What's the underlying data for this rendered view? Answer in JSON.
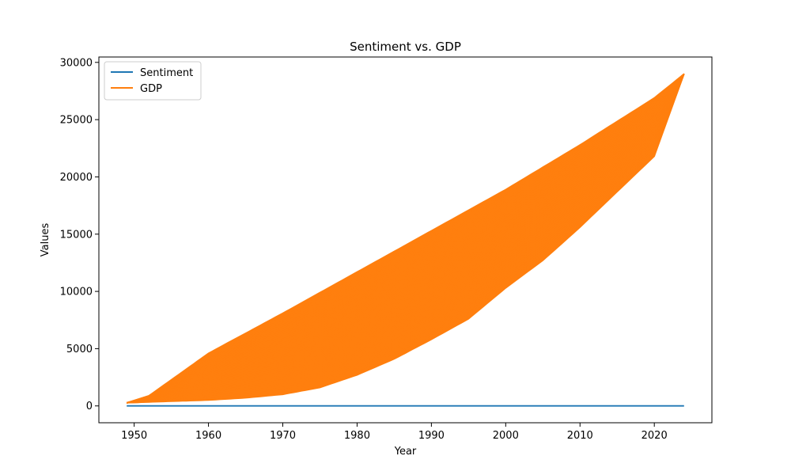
{
  "chart_data": {
    "type": "line",
    "title": "Sentiment vs. GDP",
    "xlabel": "Year",
    "ylabel": "Values",
    "xlim": [
      1945.25,
      2027.75
    ],
    "ylim": [
      -1470,
      30470
    ],
    "xticks": [
      1950,
      1960,
      1970,
      1980,
      1990,
      2000,
      2010,
      2020
    ],
    "yticks": [
      0,
      5000,
      10000,
      15000,
      20000,
      25000,
      30000
    ],
    "grid": false,
    "legend": {
      "position": "top-left"
    },
    "x_range": [
      1949,
      2024
    ],
    "series": [
      {
        "name": "Sentiment",
        "color": "#1f77b4",
        "x": [
          1949,
          2024
        ],
        "y": [
          0,
          0
        ]
      },
      {
        "name": "GDP",
        "color": "#ff7f0e",
        "envelope_upper": {
          "x": [
            1949,
            1952,
            1960,
            1970,
            1980,
            1990,
            2000,
            2010,
            2020,
            2024
          ],
          "y": [
            270,
            900,
            4600,
            8100,
            11700,
            15300,
            18900,
            22800,
            26900,
            29000
          ]
        },
        "envelope_lower": {
          "x": [
            1949,
            1955,
            1960,
            1965,
            1970,
            1975,
            1980,
            1985,
            1990,
            1995,
            2000,
            2005,
            2010,
            2015,
            2020,
            2024
          ],
          "y": [
            270,
            400,
            500,
            700,
            1000,
            1600,
            2700,
            4100,
            5800,
            7600,
            10300,
            12700,
            15600,
            18700,
            21800,
            29000
          ]
        }
      }
    ]
  }
}
